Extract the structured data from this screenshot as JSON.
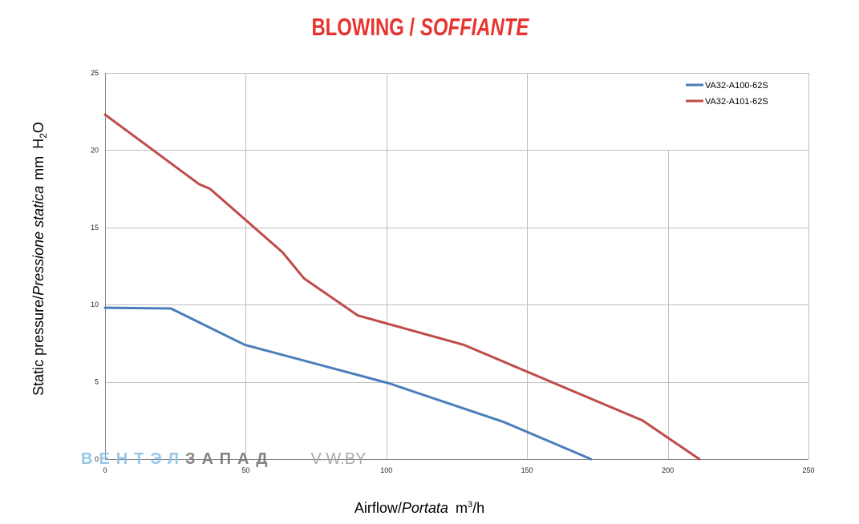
{
  "chart_data": {
    "type": "line",
    "title": {
      "text": "BLOWING /",
      "italic": "SOFFIANTE"
    },
    "xlabel": {
      "text": "Airflow/",
      "italic": "Portata",
      "unit": "m",
      "unit_sup": "3",
      "unit_suffix": "/h"
    },
    "ylabel": {
      "text": "Static pressure/",
      "italic": "Pressione statica",
      "unit": "mm",
      "unit_base": "H",
      "unit_sub": "2",
      "unit_suffix": "O"
    },
    "xlim": [
      0,
      250
    ],
    "ylim": [
      0,
      25
    ],
    "x_ticks": [
      0,
      50,
      100,
      150,
      200,
      250
    ],
    "y_ticks": [
      0,
      5,
      10,
      15,
      20,
      25
    ],
    "grid": true,
    "legend_position": "top-right",
    "series": [
      {
        "name": "VA32-A100-62S",
        "color": "#4A7EBB",
        "x": [
          0,
          23.4,
          49.6,
          101,
          141.7,
          172.7
        ],
        "y": [
          9.8,
          9.75,
          7.4,
          4.9,
          2.4,
          0
        ]
      },
      {
        "name": "VA32-A101-62S",
        "color": "#BE4B48",
        "x": [
          0,
          33.4,
          37.3,
          63,
          70.7,
          89.8,
          127.4,
          191,
          211.2
        ],
        "y": [
          22.3,
          17.8,
          17.5,
          13.4,
          11.7,
          9.3,
          7.4,
          2.5,
          0
        ]
      }
    ]
  },
  "watermark": {
    "part1": "ВЕНТЭЛ",
    "part2": "ЗАПАД",
    "site": "V-W.BY"
  },
  "colors": {
    "title": "#E8342E",
    "axis": "#868686",
    "grid": "#BFBFBF",
    "tick_label": "#262626",
    "watermark_blue": "#8FC3E8",
    "watermark_gray": "#7A7A7A"
  }
}
